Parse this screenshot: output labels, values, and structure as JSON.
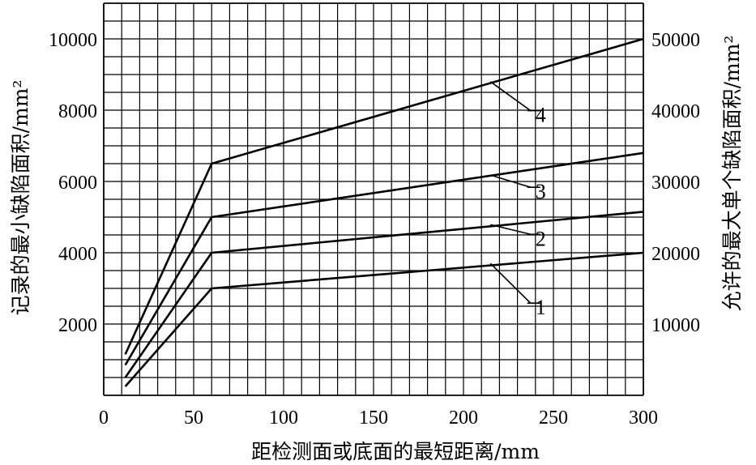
{
  "chart_data": {
    "type": "line",
    "title": "",
    "xlabel": "距检测面或底面的最短距离/mm",
    "ylabel_left": "记录的最小缺陷面积/mm²",
    "ylabel_right": "允许的最大单个缺陷面积/mm²",
    "xlim": [
      0,
      300
    ],
    "ylim_left": [
      0,
      11000
    ],
    "ylim_right": [
      0,
      55000
    ],
    "grid": true,
    "x_ticks": [
      "0",
      "50",
      "100",
      "150",
      "200",
      "250",
      "300"
    ],
    "y_ticks_left": [
      "2000",
      "4000",
      "6000",
      "8000",
      "10000"
    ],
    "y_ticks_right": [
      "10000",
      "20000",
      "30000",
      "40000",
      "50000"
    ],
    "series": [
      {
        "name": "1",
        "points": [
          [
            12,
            250
          ],
          [
            60,
            3000
          ],
          [
            300,
            4000
          ]
        ]
      },
      {
        "name": "2",
        "points": [
          [
            12,
            500
          ],
          [
            60,
            4000
          ],
          [
            300,
            5150
          ]
        ]
      },
      {
        "name": "3",
        "points": [
          [
            12,
            850
          ],
          [
            60,
            5000
          ],
          [
            300,
            6800
          ]
        ]
      },
      {
        "name": "4",
        "points": [
          [
            12,
            1150
          ],
          [
            60,
            6500
          ],
          [
            300,
            10000
          ]
        ]
      }
    ],
    "series_label_anchors": [
      {
        "series": "1",
        "at": [
          215,
          3700
        ],
        "label": [
          240,
          2450
        ]
      },
      {
        "series": "2",
        "at": [
          215,
          4790
        ],
        "label": [
          240,
          4380
        ]
      },
      {
        "series": "3",
        "at": [
          215,
          6180
        ],
        "label": [
          240,
          5700
        ]
      },
      {
        "series": "4",
        "at": [
          215,
          8800
        ],
        "label": [
          240,
          7850
        ]
      }
    ]
  }
}
